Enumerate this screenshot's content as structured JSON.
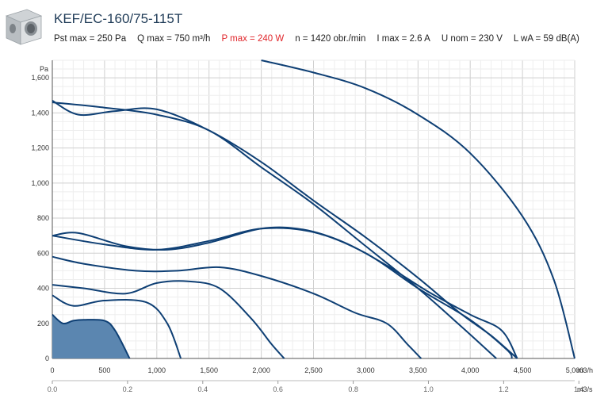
{
  "header": {
    "title": "KEF/EC-160/75-115T",
    "specs": [
      {
        "text": "Pst max = 250 Pa",
        "highlight": false
      },
      {
        "text": "Q max = 750 m³/h",
        "highlight": false
      },
      {
        "text": "P max = 240 W",
        "highlight": true
      },
      {
        "text": "n = 1420 obr./min",
        "highlight": false
      },
      {
        "text": "I max = 2.6 A",
        "highlight": false
      },
      {
        "text": "U nom = 230 V",
        "highlight": false
      },
      {
        "text": "L wA = 59 dB(A)",
        "highlight": false
      }
    ]
  },
  "chart_data": {
    "type": "line",
    "title": "",
    "ylabel": "Pa",
    "xlabel": "m3/h",
    "x2label": "m3/s",
    "xlim": [
      0,
      5000
    ],
    "ylim": [
      0,
      1700
    ],
    "x_ticks": [
      "0",
      "500",
      "1,000",
      "1,500",
      "2,000",
      "2,500",
      "3,000",
      "3,500",
      "4,000",
      "4,500",
      "5,000"
    ],
    "y_ticks": [
      "0",
      "200",
      "400",
      "600",
      "800",
      "1,000",
      "1,200",
      "1,400",
      "1,600"
    ],
    "x2_ticks": [
      "0.0",
      "0.2",
      "0.4",
      "0.6",
      "0.8",
      "1.0",
      "1.2",
      "1.4"
    ],
    "grid": true,
    "colors": {
      "curve": "#0e3f74",
      "fill": "#5b86b0",
      "grid": "#dddddd"
    },
    "shaded_series": {
      "name": "",
      "points": [
        [
          0,
          250
        ],
        [
          100,
          200
        ],
        [
          200,
          215
        ],
        [
          300,
          220
        ],
        [
          500,
          215
        ],
        [
          600,
          160
        ],
        [
          740,
          0
        ]
      ]
    },
    "series": [
      {
        "name": "",
        "points": [
          [
            0,
            1470
          ],
          [
            250,
            1390
          ],
          [
            600,
            1410
          ],
          [
            1000,
            1420
          ],
          [
            1500,
            1300
          ],
          [
            2000,
            1120
          ],
          [
            2500,
            900
          ],
          [
            3000,
            690
          ],
          [
            3500,
            460
          ],
          [
            3900,
            260
          ],
          [
            4200,
            130
          ],
          [
            4450,
            0
          ]
        ]
      },
      {
        "name": "",
        "points": [
          [
            0,
            1460
          ],
          [
            500,
            1430
          ],
          [
            1000,
            1390
          ],
          [
            1500,
            1300
          ],
          [
            2000,
            1090
          ],
          [
            2500,
            880
          ],
          [
            3000,
            640
          ],
          [
            3500,
            400
          ],
          [
            3900,
            190
          ],
          [
            4250,
            0
          ]
        ]
      },
      {
        "name": "",
        "points": [
          [
            0,
            700
          ],
          [
            250,
            715
          ],
          [
            700,
            640
          ],
          [
            1100,
            620
          ],
          [
            1500,
            660
          ],
          [
            2000,
            740
          ],
          [
            2400,
            735
          ],
          [
            2800,
            660
          ],
          [
            3200,
            530
          ],
          [
            3600,
            380
          ],
          [
            4000,
            250
          ],
          [
            4300,
            160
          ],
          [
            4450,
            0
          ]
        ]
      },
      {
        "name": "",
        "points": [
          [
            0,
            700
          ],
          [
            500,
            650
          ],
          [
            1000,
            620
          ],
          [
            1500,
            670
          ],
          [
            2000,
            740
          ],
          [
            2500,
            720
          ],
          [
            3000,
            600
          ],
          [
            3500,
            400
          ],
          [
            4000,
            220
          ],
          [
            4350,
            50
          ],
          [
            4400,
            0
          ]
        ]
      },
      {
        "name": "",
        "points": [
          [
            0,
            580
          ],
          [
            300,
            540
          ],
          [
            800,
            500
          ],
          [
            1200,
            500
          ],
          [
            1600,
            520
          ],
          [
            2000,
            470
          ],
          [
            2500,
            370
          ],
          [
            2900,
            260
          ],
          [
            3200,
            200
          ],
          [
            3400,
            80
          ],
          [
            3530,
            0
          ]
        ]
      },
      {
        "name": "",
        "points": [
          [
            0,
            420
          ],
          [
            300,
            400
          ],
          [
            700,
            370
          ],
          [
            1000,
            430
          ],
          [
            1300,
            440
          ],
          [
            1600,
            400
          ],
          [
            1900,
            230
          ],
          [
            2100,
            80
          ],
          [
            2220,
            0
          ]
        ]
      },
      {
        "name": "",
        "points": [
          [
            0,
            360
          ],
          [
            200,
            300
          ],
          [
            500,
            330
          ],
          [
            900,
            320
          ],
          [
            1100,
            200
          ],
          [
            1230,
            0
          ]
        ]
      },
      {
        "name": "",
        "points": [
          [
            2000,
            1700
          ],
          [
            2500,
            1630
          ],
          [
            3000,
            1540
          ],
          [
            3500,
            1390
          ],
          [
            4000,
            1170
          ],
          [
            4500,
            810
          ],
          [
            4800,
            450
          ],
          [
            5000,
            0
          ]
        ]
      }
    ]
  }
}
